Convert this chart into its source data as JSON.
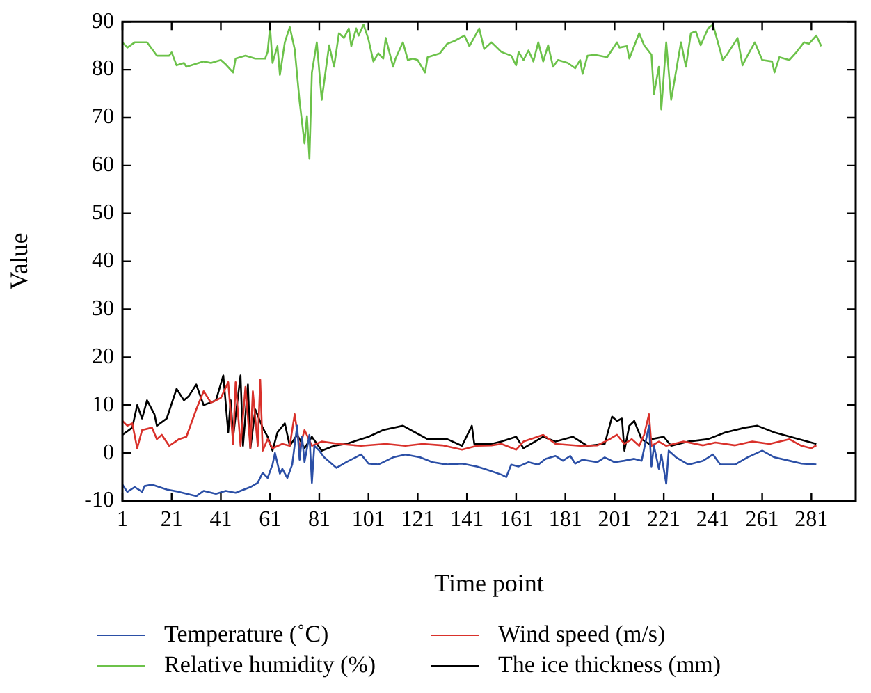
{
  "chart_data": {
    "type": "line",
    "xlabel": "Time point",
    "ylabel": "Value",
    "xlim": [
      1,
      299
    ],
    "xticks": [
      1,
      21,
      41,
      61,
      81,
      101,
      121,
      141,
      161,
      181,
      201,
      221,
      241,
      261,
      281
    ],
    "ylim": [
      -10,
      90
    ],
    "yticks": [
      -10,
      0,
      10,
      20,
      30,
      40,
      50,
      60,
      70,
      80,
      90
    ],
    "grid": false,
    "legend": "bottom",
    "marker": "none",
    "line_style": "solid",
    "series": [
      {
        "name": "Temperature (˚C)",
        "color": "#2b4fa6",
        "x": [
          1,
          3,
          6,
          9,
          10,
          13,
          19,
          24,
          31,
          34,
          39,
          43,
          47,
          53,
          56,
          58,
          60,
          62,
          63,
          65,
          66,
          68,
          70,
          72,
          73,
          74,
          75,
          77,
          78,
          79,
          81,
          83,
          88,
          92,
          98,
          101,
          105,
          111,
          116,
          122,
          127,
          133,
          139,
          145,
          148,
          151,
          155,
          157,
          159,
          162,
          166,
          170,
          173,
          177,
          180,
          183,
          185,
          188,
          194,
          197,
          201,
          205,
          209,
          212,
          215,
          216,
          217,
          219,
          220,
          222,
          223,
          226,
          231,
          237,
          241,
          244,
          250,
          255,
          261,
          266,
          272,
          277,
          283
        ],
        "values": [
          -6.6,
          -8.1,
          -7.1,
          -8.1,
          -6.9,
          -6.6,
          -7.6,
          -8.1,
          -9.0,
          -7.9,
          -8.5,
          -7.9,
          -8.3,
          -7.1,
          -6.2,
          -4.1,
          -5.2,
          -2.4,
          0,
          -4.3,
          -3.3,
          -5.2,
          -2.4,
          5.7,
          -1.4,
          3.4,
          -1.9,
          3.8,
          -6.2,
          1.5,
          0.5,
          -0.9,
          -3.1,
          -1.9,
          -0.3,
          -2.2,
          -2.4,
          -0.9,
          -0.3,
          -0.9,
          -1.9,
          -2.4,
          -2.2,
          -2.8,
          -3.3,
          -3.8,
          -4.5,
          -5.0,
          -2.4,
          -2.8,
          -1.9,
          -2.4,
          -1.2,
          -0.6,
          -1.6,
          -0.6,
          -2.2,
          -1.4,
          -1.9,
          -0.9,
          -1.9,
          -1.6,
          -1.2,
          -1.6,
          5.7,
          -2.8,
          1.5,
          -3.3,
          -0.3,
          -6.4,
          0.5,
          -0.9,
          -2.4,
          -1.6,
          -0.3,
          -2.4,
          -2.4,
          -0.9,
          0.5,
          -0.9,
          -1.6,
          -2.2,
          -2.4
        ]
      },
      {
        "name": "Wind speed (m/s)",
        "color": "#d9312b",
        "x": [
          1,
          3,
          5,
          7,
          9,
          13,
          15,
          17,
          20,
          24,
          27,
          31,
          34,
          37,
          41,
          44,
          46,
          47,
          49,
          51,
          53,
          54,
          56,
          57,
          58,
          60,
          62,
          66,
          69,
          71,
          73,
          75,
          78,
          82,
          89,
          98,
          108,
          116,
          123,
          131,
          139,
          145,
          151,
          155,
          161,
          164,
          172,
          177,
          187,
          194,
          199,
          202,
          205,
          208,
          211,
          213,
          215,
          216,
          219,
          222,
          229,
          237,
          242,
          250,
          257,
          264,
          272,
          277,
          281,
          283
        ],
        "values": [
          6.7,
          5.7,
          6.2,
          1.0,
          4.8,
          5.3,
          2.9,
          3.8,
          1.5,
          2.9,
          3.4,
          9.1,
          12.9,
          10.5,
          11.5,
          14.8,
          1.9,
          14.8,
          1.5,
          13.8,
          1.0,
          12.9,
          1.5,
          15.3,
          0.5,
          2.9,
          1.0,
          1.9,
          1.5,
          8.1,
          1.0,
          4.8,
          1.5,
          2.4,
          1.9,
          1.5,
          1.9,
          1.5,
          1.9,
          1.6,
          0.7,
          1.5,
          1.6,
          1.9,
          0.7,
          2.4,
          3.8,
          1.9,
          1.5,
          1.6,
          2.9,
          3.8,
          1.9,
          2.9,
          1.5,
          3.8,
          8.1,
          1.5,
          2.4,
          1.5,
          2.4,
          1.6,
          2.2,
          1.6,
          2.4,
          1.9,
          2.9,
          1.5,
          1.0,
          1.6
        ]
      },
      {
        "name": "Relative humidity (%)",
        "color": "#6cc24a",
        "x": [
          1,
          3,
          6,
          11,
          15,
          20,
          21,
          23,
          26,
          27,
          32,
          34,
          37,
          41,
          43,
          46,
          47,
          51,
          55,
          59,
          60,
          61,
          62,
          64,
          65,
          67,
          69,
          71,
          73,
          75,
          76,
          77,
          78,
          80,
          82,
          85,
          87,
          89,
          91,
          93,
          94,
          96,
          97,
          99,
          101,
          103,
          105,
          107,
          108,
          111,
          112,
          115,
          117,
          119,
          121,
          124,
          125,
          130,
          133,
          136,
          140,
          142,
          146,
          148,
          151,
          155,
          159,
          161,
          162,
          164,
          166,
          168,
          170,
          172,
          174,
          176,
          178,
          182,
          185,
          187,
          188,
          190,
          193,
          198,
          202,
          203,
          206,
          207,
          211,
          213,
          216,
          217,
          219,
          220,
          222,
          224,
          228,
          230,
          232,
          234,
          236,
          239,
          241,
          245,
          247,
          251,
          253,
          255,
          258,
          261,
          265,
          266,
          268,
          272,
          275,
          278,
          280,
          283,
          285
        ],
        "values": [
          85.7,
          84.6,
          85.7,
          85.7,
          82.9,
          82.9,
          83.6,
          80.9,
          81.4,
          80.6,
          81.4,
          81.7,
          81.4,
          82,
          81.1,
          79.4,
          82.3,
          82.9,
          82.3,
          82.3,
          83.7,
          88.9,
          81.4,
          84.9,
          78.9,
          85.7,
          88.9,
          84.3,
          73.4,
          64.6,
          70.3,
          61.4,
          79.4,
          85.7,
          73.7,
          85.1,
          80.6,
          87.6,
          86.6,
          88.6,
          84.9,
          88.6,
          87.1,
          89.4,
          86.3,
          81.7,
          83.4,
          82.3,
          86.6,
          80.6,
          82.3,
          85.7,
          82,
          82.3,
          82,
          79.4,
          82.6,
          83.4,
          85.4,
          86,
          87.1,
          84.9,
          88.6,
          84.3,
          85.7,
          83.7,
          82.9,
          80.9,
          83.7,
          82,
          84,
          81.7,
          85.7,
          81.7,
          85.1,
          80.6,
          82,
          81.4,
          80.3,
          82,
          79.1,
          82.9,
          83.1,
          82.6,
          85.7,
          84.6,
          84.9,
          82.3,
          87.6,
          85.1,
          83.1,
          74.9,
          80.6,
          71.7,
          85.7,
          73.7,
          85.7,
          80.6,
          87.6,
          88,
          85.1,
          88.6,
          89.4,
          82,
          83.4,
          86.6,
          80.9,
          82.9,
          85.7,
          82,
          81.7,
          79.4,
          82.6,
          82,
          83.7,
          85.7,
          85.4,
          87.1,
          84.9
        ]
      },
      {
        "name": "The ice thickness (mm)",
        "color": "#000000",
        "x": [
          1,
          5,
          7,
          9,
          11,
          14,
          15,
          19,
          23,
          26,
          28,
          31,
          34,
          39,
          42,
          44,
          45,
          46,
          49,
          50,
          52,
          53,
          55,
          58,
          60,
          62,
          64,
          67,
          69,
          72,
          75,
          78,
          82,
          87,
          92,
          101,
          107,
          115,
          120,
          125,
          133,
          139,
          143,
          144,
          151,
          155,
          161,
          164,
          172,
          177,
          184,
          190,
          197,
          200,
          202,
          204,
          205,
          207,
          209,
          212,
          215,
          216,
          221,
          224,
          231,
          239,
          246,
          254,
          259,
          266,
          276,
          283
        ],
        "values": [
          3.8,
          5.3,
          10.0,
          7.2,
          11.0,
          8.1,
          5.7,
          7.2,
          13.4,
          11.0,
          11.9,
          14.3,
          10.0,
          11.0,
          16.2,
          4.3,
          11.0,
          3.4,
          16.2,
          1.5,
          14.3,
          1.0,
          9.1,
          5.3,
          3.4,
          0.5,
          4.3,
          6.2,
          1.5,
          3.8,
          1.0,
          3.4,
          0.5,
          1.5,
          1.9,
          3.4,
          4.8,
          5.7,
          4.3,
          2.9,
          2.9,
          1.5,
          5.7,
          1.9,
          1.9,
          2.4,
          3.4,
          1.0,
          3.4,
          2.4,
          3.4,
          1.5,
          1.9,
          7.6,
          6.7,
          7.2,
          0.5,
          5.7,
          6.7,
          2.9,
          1.9,
          2.9,
          3.4,
          1.5,
          2.4,
          2.9,
          4.3,
          5.3,
          5.7,
          4.3,
          2.9,
          1.9
        ]
      }
    ]
  }
}
